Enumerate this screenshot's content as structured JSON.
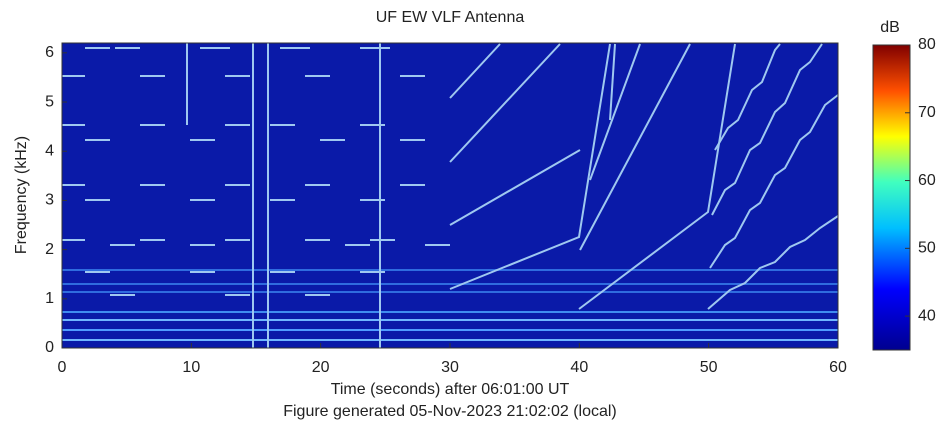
{
  "chart_data": {
    "type": "spectrogram",
    "title": "UF EW VLF Antenna",
    "xlabel": "Time (seconds) after 06:01:00 UT",
    "ylabel": "Frequency (kHz)",
    "caption": "Figure generated 05-Nov-2023 21:02:02 (local)",
    "xlim": [
      0,
      60
    ],
    "xticks": [
      0,
      10,
      20,
      30,
      40,
      50,
      60
    ],
    "ylim": [
      0,
      6.2
    ],
    "yticks": [
      0,
      1,
      2,
      3,
      4,
      5,
      6
    ],
    "colorbar": {
      "label": "dB",
      "lim": [
        35,
        80
      ],
      "ticks": [
        40,
        50,
        60,
        70,
        80
      ]
    }
  }
}
